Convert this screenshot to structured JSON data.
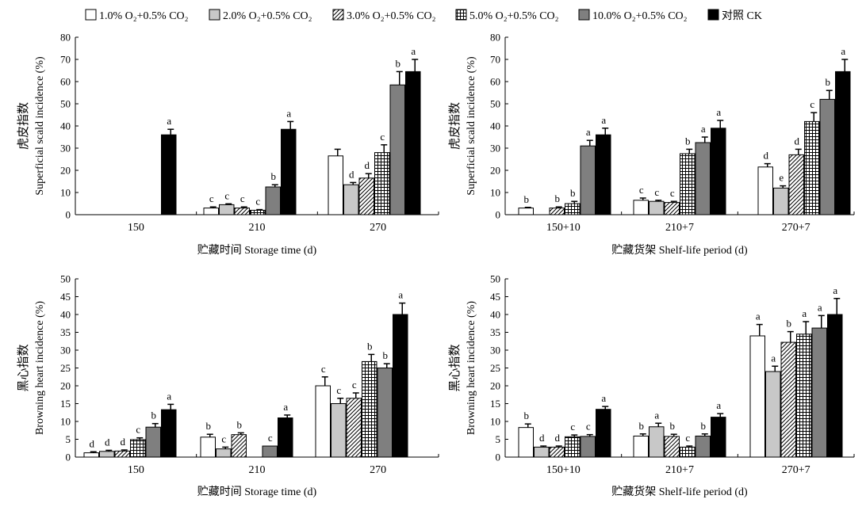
{
  "colors": {
    "background": "#ffffff",
    "axis": "#000000",
    "series_fills": [
      "#ffffff",
      "#c8c8c8",
      "hatch-diagonal",
      "hatch-grid",
      "#7f7f7f",
      "#000000"
    ]
  },
  "legend": {
    "position": "top",
    "items": [
      {
        "label": "1.0% O₂+0.5% CO₂",
        "fill": "#ffffff"
      },
      {
        "label": "2.0% O₂+0.5% CO₂",
        "fill": "#c8c8c8"
      },
      {
        "label": "3.0% O₂+0.5% CO₂",
        "fill": "hatch-diagonal"
      },
      {
        "label": "5.0% O₂+0.5% CO₂",
        "fill": "hatch-grid"
      },
      {
        "label": "10.0% O₂+0.5% CO₂",
        "fill": "#7f7f7f"
      },
      {
        "label": "对照 CK",
        "fill": "#000000"
      }
    ]
  },
  "chart_data": [
    {
      "type": "bar",
      "title": "",
      "ylabel_cn": "虎皮指数",
      "ylabel": "Superficial scald incidence (%)",
      "xlabel": "贮藏时间 Storage time (d)",
      "categories": [
        "150",
        "210",
        "270"
      ],
      "ylim": [
        0,
        80
      ],
      "yticks": [
        "0",
        "10",
        "20",
        "30",
        "40",
        "50",
        "60",
        "70",
        "80"
      ],
      "series": [
        {
          "values": [
            0,
            3,
            26.5
          ],
          "errors": [
            0,
            0.5,
            3
          ],
          "letters": [
            "",
            "c",
            ""
          ]
        },
        {
          "values": [
            0,
            4.5,
            13.5
          ],
          "errors": [
            0,
            0.4,
            1
          ],
          "letters": [
            "",
            "c",
            "d"
          ]
        },
        {
          "values": [
            0,
            3,
            16.5
          ],
          "errors": [
            0,
            0.5,
            2
          ],
          "letters": [
            "",
            "c",
            "d"
          ]
        },
        {
          "values": [
            0,
            2,
            28
          ],
          "errors": [
            0,
            0.3,
            3.5
          ],
          "letters": [
            "",
            "c",
            "c"
          ]
        },
        {
          "values": [
            0,
            12.5,
            58.5
          ],
          "errors": [
            0,
            1,
            6
          ],
          "letters": [
            "",
            "b",
            "b"
          ]
        },
        {
          "values": [
            36,
            38.5,
            64.5
          ],
          "errors": [
            2.5,
            3.5,
            5.5
          ],
          "letters": [
            "a",
            "a",
            "a"
          ]
        }
      ]
    },
    {
      "type": "bar",
      "title": "",
      "ylabel_cn": "虎皮指数",
      "ylabel": "Superficial scald incidence (%)",
      "xlabel": "贮藏货架 Shelf-life period (d)",
      "categories": [
        "150+10",
        "210+7",
        "270+7"
      ],
      "ylim": [
        0,
        80
      ],
      "yticks": [
        "0",
        "10",
        "20",
        "30",
        "40",
        "50",
        "60",
        "70",
        "80"
      ],
      "series": [
        {
          "values": [
            3,
            6.5,
            21.5
          ],
          "errors": [
            0.3,
            1,
            1.5
          ],
          "letters": [
            "b",
            "c",
            "d"
          ]
        },
        {
          "values": [
            0,
            6,
            12
          ],
          "errors": [
            0,
            0.5,
            1
          ],
          "letters": [
            "",
            "c",
            "e"
          ]
        },
        {
          "values": [
            3,
            5.5,
            27
          ],
          "errors": [
            0.5,
            0.5,
            2.5
          ],
          "letters": [
            "b",
            "c",
            "d"
          ]
        },
        {
          "values": [
            5,
            27.5,
            42
          ],
          "errors": [
            1,
            2,
            4
          ],
          "letters": [
            "b",
            "b",
            "c"
          ]
        },
        {
          "values": [
            31,
            32.5,
            52
          ],
          "errors": [
            2.5,
            2.5,
            4
          ],
          "letters": [
            "a",
            "a",
            "b"
          ]
        },
        {
          "values": [
            36,
            39,
            64.5
          ],
          "errors": [
            3,
            3.5,
            5.5
          ],
          "letters": [
            "a",
            "a",
            "a"
          ]
        }
      ]
    },
    {
      "type": "bar",
      "title": "",
      "ylabel_cn": "黑心指数",
      "ylabel": "Browning heart incidence (%)",
      "xlabel": "贮藏时间 Storage time (d)",
      "categories": [
        "150",
        "210",
        "270"
      ],
      "ylim": [
        0,
        50
      ],
      "yticks": [
        "0",
        "5",
        "10",
        "15",
        "20",
        "25",
        "30",
        "35",
        "40",
        "45",
        "50"
      ],
      "series": [
        {
          "values": [
            1.2,
            5.6,
            20
          ],
          "errors": [
            0.3,
            0.8,
            2.5
          ],
          "letters": [
            "d",
            "b",
            "c"
          ]
        },
        {
          "values": [
            1.6,
            2.3,
            15
          ],
          "errors": [
            0.3,
            0.5,
            1.5
          ],
          "letters": [
            "d",
            "c",
            "c"
          ]
        },
        {
          "values": [
            1.7,
            6.3,
            16.5
          ],
          "errors": [
            0.3,
            0.5,
            1.5
          ],
          "letters": [
            "d",
            "b",
            "c"
          ]
        },
        {
          "values": [
            4.9,
            0,
            26.8
          ],
          "errors": [
            0.5,
            0,
            2
          ],
          "letters": [
            "c",
            "",
            "b"
          ]
        },
        {
          "values": [
            8.4,
            3.1,
            25
          ],
          "errors": [
            1,
            0,
            1.2
          ],
          "letters": [
            "b",
            "c",
            "b"
          ]
        },
        {
          "values": [
            13.3,
            11,
            40
          ],
          "errors": [
            1.5,
            0.8,
            3.2
          ],
          "letters": [
            "a",
            "a",
            "a"
          ]
        }
      ]
    },
    {
      "type": "bar",
      "title": "",
      "ylabel_cn": "黑心指数",
      "ylabel": "Browning heart incidence (%)",
      "xlabel": "贮藏货架 Shelf-life period (d)",
      "categories": [
        "150+10",
        "210+7",
        "270+7"
      ],
      "ylim": [
        0,
        50
      ],
      "yticks": [
        "0",
        "5",
        "10",
        "15",
        "20",
        "25",
        "30",
        "35",
        "40",
        "45",
        "50"
      ],
      "series": [
        {
          "values": [
            8.3,
            5.9,
            34
          ],
          "errors": [
            1,
            0.6,
            3.2
          ],
          "letters": [
            "b",
            "b",
            "a"
          ]
        },
        {
          "values": [
            2.8,
            8.5,
            24
          ],
          "errors": [
            0.3,
            1,
            1.5
          ],
          "letters": [
            "d",
            "a",
            "a"
          ]
        },
        {
          "values": [
            2.8,
            5.8,
            32.2
          ],
          "errors": [
            0.3,
            0.6,
            3
          ],
          "letters": [
            "d",
            "b",
            "b"
          ]
        },
        {
          "values": [
            5.7,
            2.8,
            34.5
          ],
          "errors": [
            0.5,
            0.3,
            3.5
          ],
          "letters": [
            "c",
            "c",
            "a"
          ]
        },
        {
          "values": [
            5.8,
            5.9,
            36.2
          ],
          "errors": [
            0.5,
            0.6,
            3.5
          ],
          "letters": [
            "c",
            "b",
            "a"
          ]
        },
        {
          "values": [
            13.4,
            11.2,
            40
          ],
          "errors": [
            0.8,
            1,
            4.5
          ],
          "letters": [
            "a",
            "a",
            "a"
          ]
        }
      ]
    }
  ]
}
